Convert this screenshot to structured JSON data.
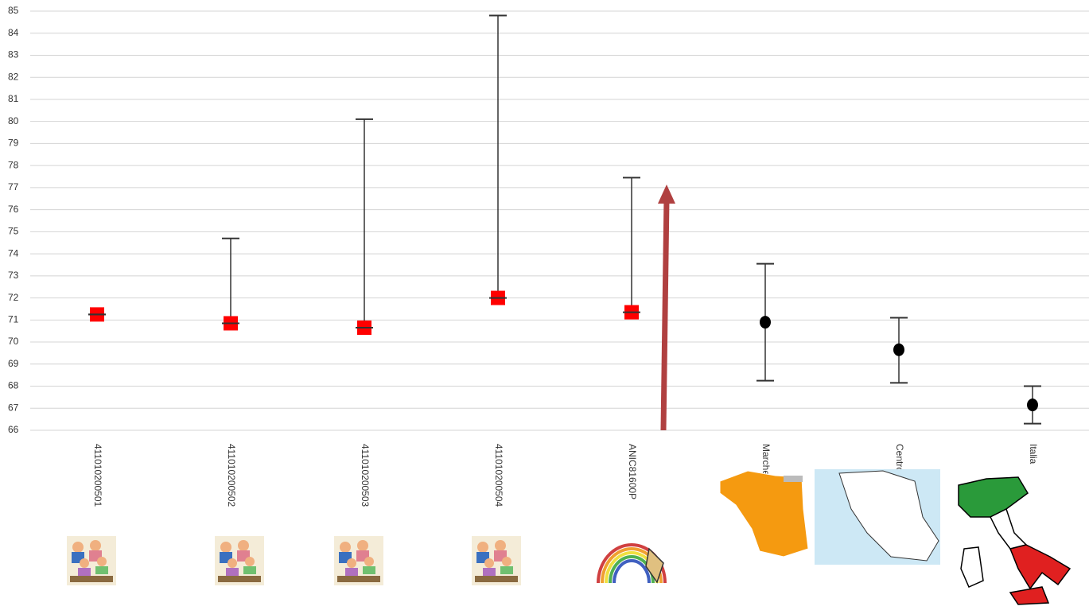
{
  "chart_data": {
    "type": "errorbar",
    "categories": [
      "411010200501",
      "411010200502",
      "411010200503",
      "411010200504",
      "ANIC81600P",
      "Marche",
      "Centro",
      "Italia"
    ],
    "values": [
      71.25,
      70.85,
      70.65,
      72.0,
      71.35,
      70.9,
      69.65,
      67.15
    ],
    "lower": [
      71.25,
      70.85,
      70.65,
      72.0,
      71.35,
      68.25,
      68.15,
      66.3
    ],
    "upper": [
      71.25,
      74.7,
      80.1,
      84.8,
      77.45,
      73.55,
      71.1,
      68.0
    ],
    "marker_shapes": [
      "square",
      "square",
      "square",
      "square",
      "square",
      "circle",
      "circle",
      "circle"
    ],
    "marker_colors": [
      "#ff0000",
      "#ff0000",
      "#ff0000",
      "#ff0000",
      "#ff0000",
      "#000000",
      "#000000",
      "#000000"
    ],
    "whisker_color": "#333333",
    "ylim": [
      66,
      85
    ],
    "yticks": [
      66,
      67,
      68,
      69,
      70,
      71,
      72,
      73,
      74,
      75,
      76,
      77,
      78,
      79,
      80,
      81,
      82,
      83,
      84,
      85
    ],
    "grid": true
  }
}
